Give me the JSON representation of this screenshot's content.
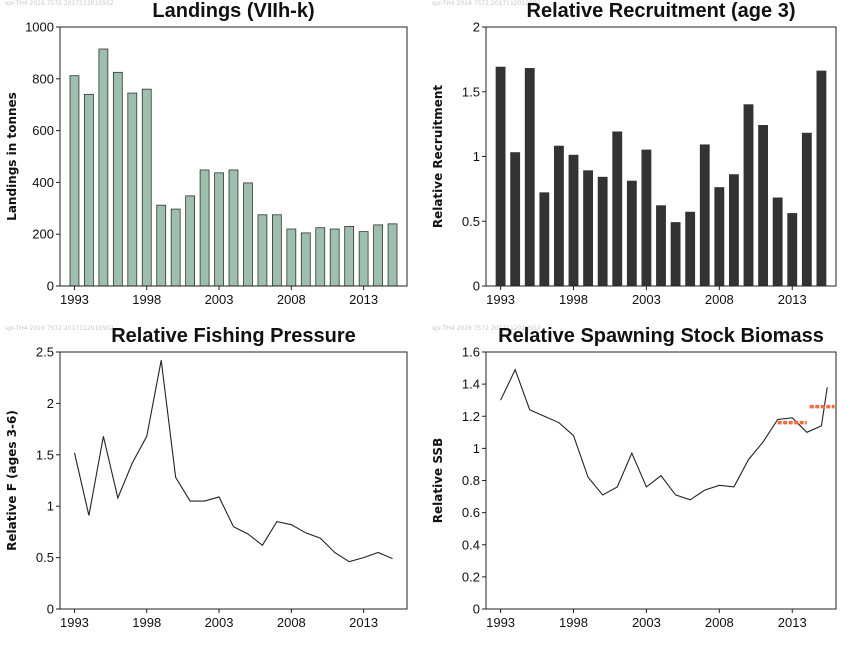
{
  "stamp": "spr-TH4 2016 7572 2017112010502",
  "chart_data": [
    {
      "id": "landings",
      "type": "bar",
      "title": "Landings (VIIh-k)",
      "ylabel": "Landings in tonnes",
      "xlabel": "",
      "x": [
        1993,
        1994,
        1995,
        1996,
        1997,
        1998,
        1999,
        2000,
        2001,
        2002,
        2003,
        2004,
        2005,
        2006,
        2007,
        2008,
        2009,
        2010,
        2011,
        2012,
        2013,
        2014,
        2015
      ],
      "values": [
        812,
        740,
        915,
        825,
        745,
        760,
        312,
        297,
        348,
        448,
        437,
        448,
        398,
        275,
        275,
        220,
        205,
        225,
        220,
        230,
        210,
        236,
        240
      ],
      "ylim": [
        0,
        1000
      ],
      "yticks": [
        0,
        200,
        400,
        600,
        800,
        1000
      ],
      "xticks": [
        1993,
        1998,
        2003,
        2008,
        2013
      ],
      "color": "#9cbfae"
    },
    {
      "id": "recruitment",
      "type": "bar",
      "title": "Relative Recruitment (age 3)",
      "ylabel": "Relative Recruitment",
      "xlabel": "",
      "x": [
        1993,
        1994,
        1995,
        1996,
        1997,
        1998,
        1999,
        2000,
        2001,
        2002,
        2003,
        2004,
        2005,
        2006,
        2007,
        2008,
        2009,
        2010,
        2011,
        2012,
        2013,
        2014,
        2015
      ],
      "values": [
        1.69,
        1.03,
        1.68,
        0.72,
        1.08,
        1.01,
        0.89,
        0.84,
        1.19,
        0.81,
        1.05,
        0.62,
        0.49,
        0.57,
        1.09,
        0.76,
        0.86,
        1.4,
        1.24,
        0.68,
        0.56,
        1.18,
        1.66
      ],
      "ylim": [
        0,
        2
      ],
      "yticks": [
        0,
        0.5,
        1,
        1.5,
        2
      ],
      "xticks": [
        1993,
        1998,
        2003,
        2008,
        2013
      ],
      "color": "#333333"
    },
    {
      "id": "fishing-pressure",
      "type": "line",
      "title": "Relative Fishing Pressure",
      "ylabel": "Relative F (ages 3-6)",
      "xlabel": "",
      "x": [
        1993,
        1994,
        1995,
        1996,
        1997,
        1998,
        1999,
        2000,
        2001,
        2002,
        2003,
        2004,
        2005,
        2006,
        2007,
        2008,
        2009,
        2010,
        2011,
        2012,
        2013,
        2014,
        2015
      ],
      "values": [
        1.52,
        0.91,
        1.68,
        1.08,
        1.42,
        1.68,
        2.42,
        1.28,
        1.05,
        1.05,
        1.09,
        0.8,
        0.73,
        0.62,
        0.85,
        0.82,
        0.74,
        0.69,
        0.55,
        0.46,
        0.5,
        0.55,
        0.49
      ],
      "ylim": [
        0,
        2.5
      ],
      "yticks": [
        0,
        0.5,
        1,
        1.5,
        2,
        2.5
      ],
      "xticks": [
        1993,
        1998,
        2003,
        2008,
        2013
      ],
      "color": "#222222"
    },
    {
      "id": "ssb",
      "type": "line",
      "title": "Relative Spawning Stock Biomass",
      "ylabel": "Relative SSB",
      "xlabel": "",
      "x": [
        1993,
        1994,
        1995,
        1996,
        1997,
        1998,
        1999,
        2000,
        2001,
        2002,
        2003,
        2004,
        2005,
        2006,
        2007,
        2008,
        2009,
        2010,
        2011,
        2012,
        2013,
        2014,
        2015
      ],
      "values": [
        1.3,
        1.49,
        1.24,
        1.2,
        1.16,
        1.08,
        0.82,
        0.71,
        0.76,
        0.97,
        0.76,
        0.83,
        0.71,
        0.68,
        0.74,
        0.77,
        0.76,
        0.93,
        1.04,
        1.18,
        1.19,
        1.1,
        1.14
      ],
      "extra_point": {
        "x": 2015.4,
        "y": 1.38
      },
      "ylim": [
        0,
        1.6
      ],
      "yticks": [
        0,
        0.2,
        0.4,
        0.6,
        0.8,
        1,
        1.2,
        1.4,
        1.6
      ],
      "xticks": [
        1993,
        1998,
        2003,
        2008,
        2013
      ],
      "color": "#222222",
      "reference_segments": [
        {
          "x0": 2012,
          "x1": 2014,
          "y": 1.16
        },
        {
          "x0": 2014.2,
          "x1": 2015.9,
          "y": 1.26
        }
      ],
      "reference_color": "#f26b3a"
    }
  ]
}
